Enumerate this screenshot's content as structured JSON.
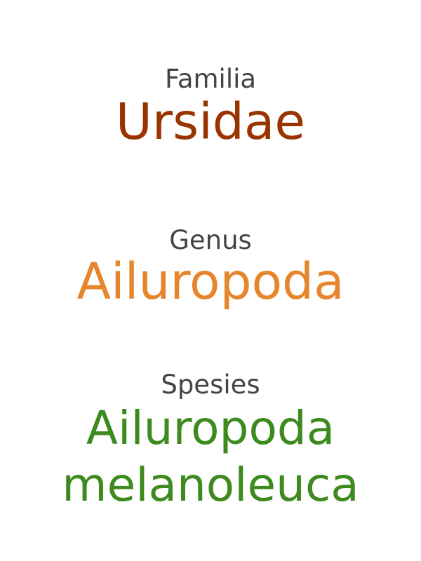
{
  "familia": {
    "label": "Familia",
    "name": "Ursidae",
    "color": "#993300"
  },
  "genus": {
    "label": "Genus",
    "name": "Ailuropoda",
    "color": "#e6852b"
  },
  "spesies": {
    "label": "Spesies",
    "name_line1": "Ailuropoda",
    "name_line2": "melanoleuca",
    "color": "#3d8a1f"
  },
  "label_color": "#444444"
}
